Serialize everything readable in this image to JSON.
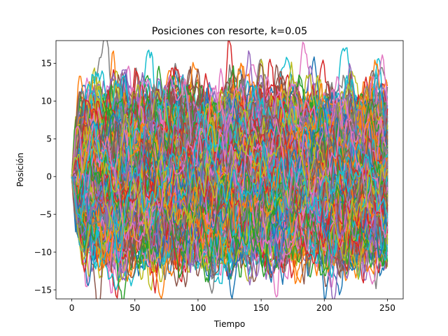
{
  "chart_data": {
    "type": "line",
    "title": "Posiciones con resorte, k=0.05",
    "xlabel": "Tiempo",
    "ylabel": "Posición",
    "xlim": [
      -12.5,
      262.5
    ],
    "ylim": [
      -16.2,
      18
    ],
    "xticks": [
      0,
      50,
      100,
      150,
      200,
      250
    ],
    "yticks": [
      -15,
      -10,
      -5,
      0,
      5,
      10,
      15
    ],
    "grid": false,
    "legend": "none",
    "series_count": 1000,
    "steps": 250,
    "start_value": 0,
    "spring_constant": 0.05,
    "color_cycle": [
      "#1f77b4",
      "#ff7f0e",
      "#2ca02c",
      "#d62728",
      "#9467bd",
      "#8c564b",
      "#e377c2",
      "#7f7f7f",
      "#bcbd22",
      "#17becf"
    ]
  }
}
